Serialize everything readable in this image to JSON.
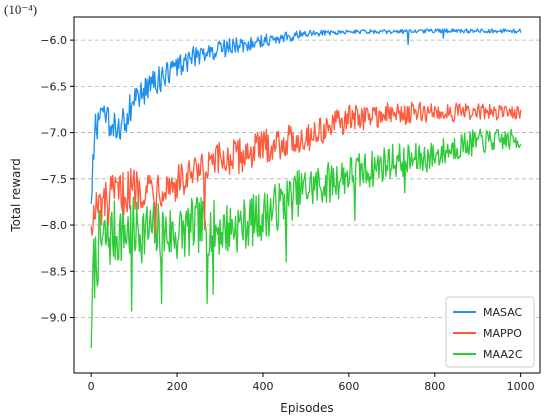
{
  "chart_data": {
    "type": "line",
    "scale_label": "(10⁻⁴)",
    "xlabel": "Episodes",
    "ylabel": "Total reward",
    "xlim": [
      -40,
      1045
    ],
    "ylim": [
      -9.6,
      -5.75
    ],
    "xticks": [
      0,
      200,
      400,
      600,
      800,
      1000
    ],
    "yticks": [
      -9.0,
      -8.5,
      -8.0,
      -7.5,
      -7.0,
      -6.5,
      -6.0
    ],
    "grid": "horizontal dashed",
    "legend_position": "lower-right",
    "series": [
      {
        "name": "MASAC",
        "color": "#1f8ff0",
        "noise": 0.12,
        "points": [
          [
            0,
            -7.7
          ],
          [
            10,
            -6.95
          ],
          [
            25,
            -6.85
          ],
          [
            50,
            -6.95
          ],
          [
            75,
            -6.9
          ],
          [
            100,
            -6.65
          ],
          [
            150,
            -6.45
          ],
          [
            200,
            -6.3
          ],
          [
            250,
            -6.15
          ],
          [
            300,
            -6.1
          ],
          [
            350,
            -6.05
          ],
          [
            400,
            -6.0
          ],
          [
            450,
            -5.97
          ],
          [
            500,
            -5.93
          ],
          [
            600,
            -5.91
          ],
          [
            700,
            -5.91
          ],
          [
            800,
            -5.9
          ],
          [
            1000,
            -5.9
          ]
        ],
        "dips": [
          [
            738,
            -6.05
          ],
          [
            820,
            -5.98
          ]
        ]
      },
      {
        "name": "MAPPO",
        "color": "#ff5a3c",
        "noise": 0.16,
        "points": [
          [
            0,
            -7.9
          ],
          [
            50,
            -7.7
          ],
          [
            100,
            -7.6
          ],
          [
            150,
            -7.58
          ],
          [
            200,
            -7.55
          ],
          [
            250,
            -7.45
          ],
          [
            300,
            -7.3
          ],
          [
            350,
            -7.25
          ],
          [
            400,
            -7.15
          ],
          [
            450,
            -7.1
          ],
          [
            500,
            -7.05
          ],
          [
            550,
            -6.95
          ],
          [
            600,
            -6.85
          ],
          [
            650,
            -6.82
          ],
          [
            700,
            -6.8
          ],
          [
            800,
            -6.78
          ],
          [
            900,
            -6.78
          ],
          [
            1000,
            -6.78
          ]
        ],
        "dips": [
          [
            5,
            -8.05
          ],
          [
            40,
            -8.0
          ],
          [
            150,
            -8.1
          ],
          [
            265,
            -8.05
          ]
        ]
      },
      {
        "name": "MAA2C",
        "color": "#2ecb38",
        "noise": 0.24,
        "points": [
          [
            0,
            -8.6
          ],
          [
            20,
            -8.2
          ],
          [
            50,
            -8.1
          ],
          [
            100,
            -8.05
          ],
          [
            200,
            -8.1
          ],
          [
            250,
            -8.0
          ],
          [
            300,
            -8.05
          ],
          [
            350,
            -8.0
          ],
          [
            400,
            -7.9
          ],
          [
            450,
            -7.75
          ],
          [
            500,
            -7.6
          ],
          [
            550,
            -7.55
          ],
          [
            600,
            -7.45
          ],
          [
            650,
            -7.4
          ],
          [
            700,
            -7.3
          ],
          [
            750,
            -7.3
          ],
          [
            800,
            -7.25
          ],
          [
            850,
            -7.15
          ],
          [
            900,
            -7.1
          ],
          [
            950,
            -7.08
          ],
          [
            1000,
            -7.08
          ]
        ],
        "dips": [
          [
            1,
            -9.33
          ],
          [
            3,
            -8.95
          ],
          [
            95,
            -8.93
          ],
          [
            165,
            -8.85
          ],
          [
            270,
            -8.85
          ],
          [
            285,
            -8.75
          ],
          [
            455,
            -8.4
          ],
          [
            615,
            -7.95
          ],
          [
            730,
            -7.65
          ]
        ]
      }
    ]
  }
}
